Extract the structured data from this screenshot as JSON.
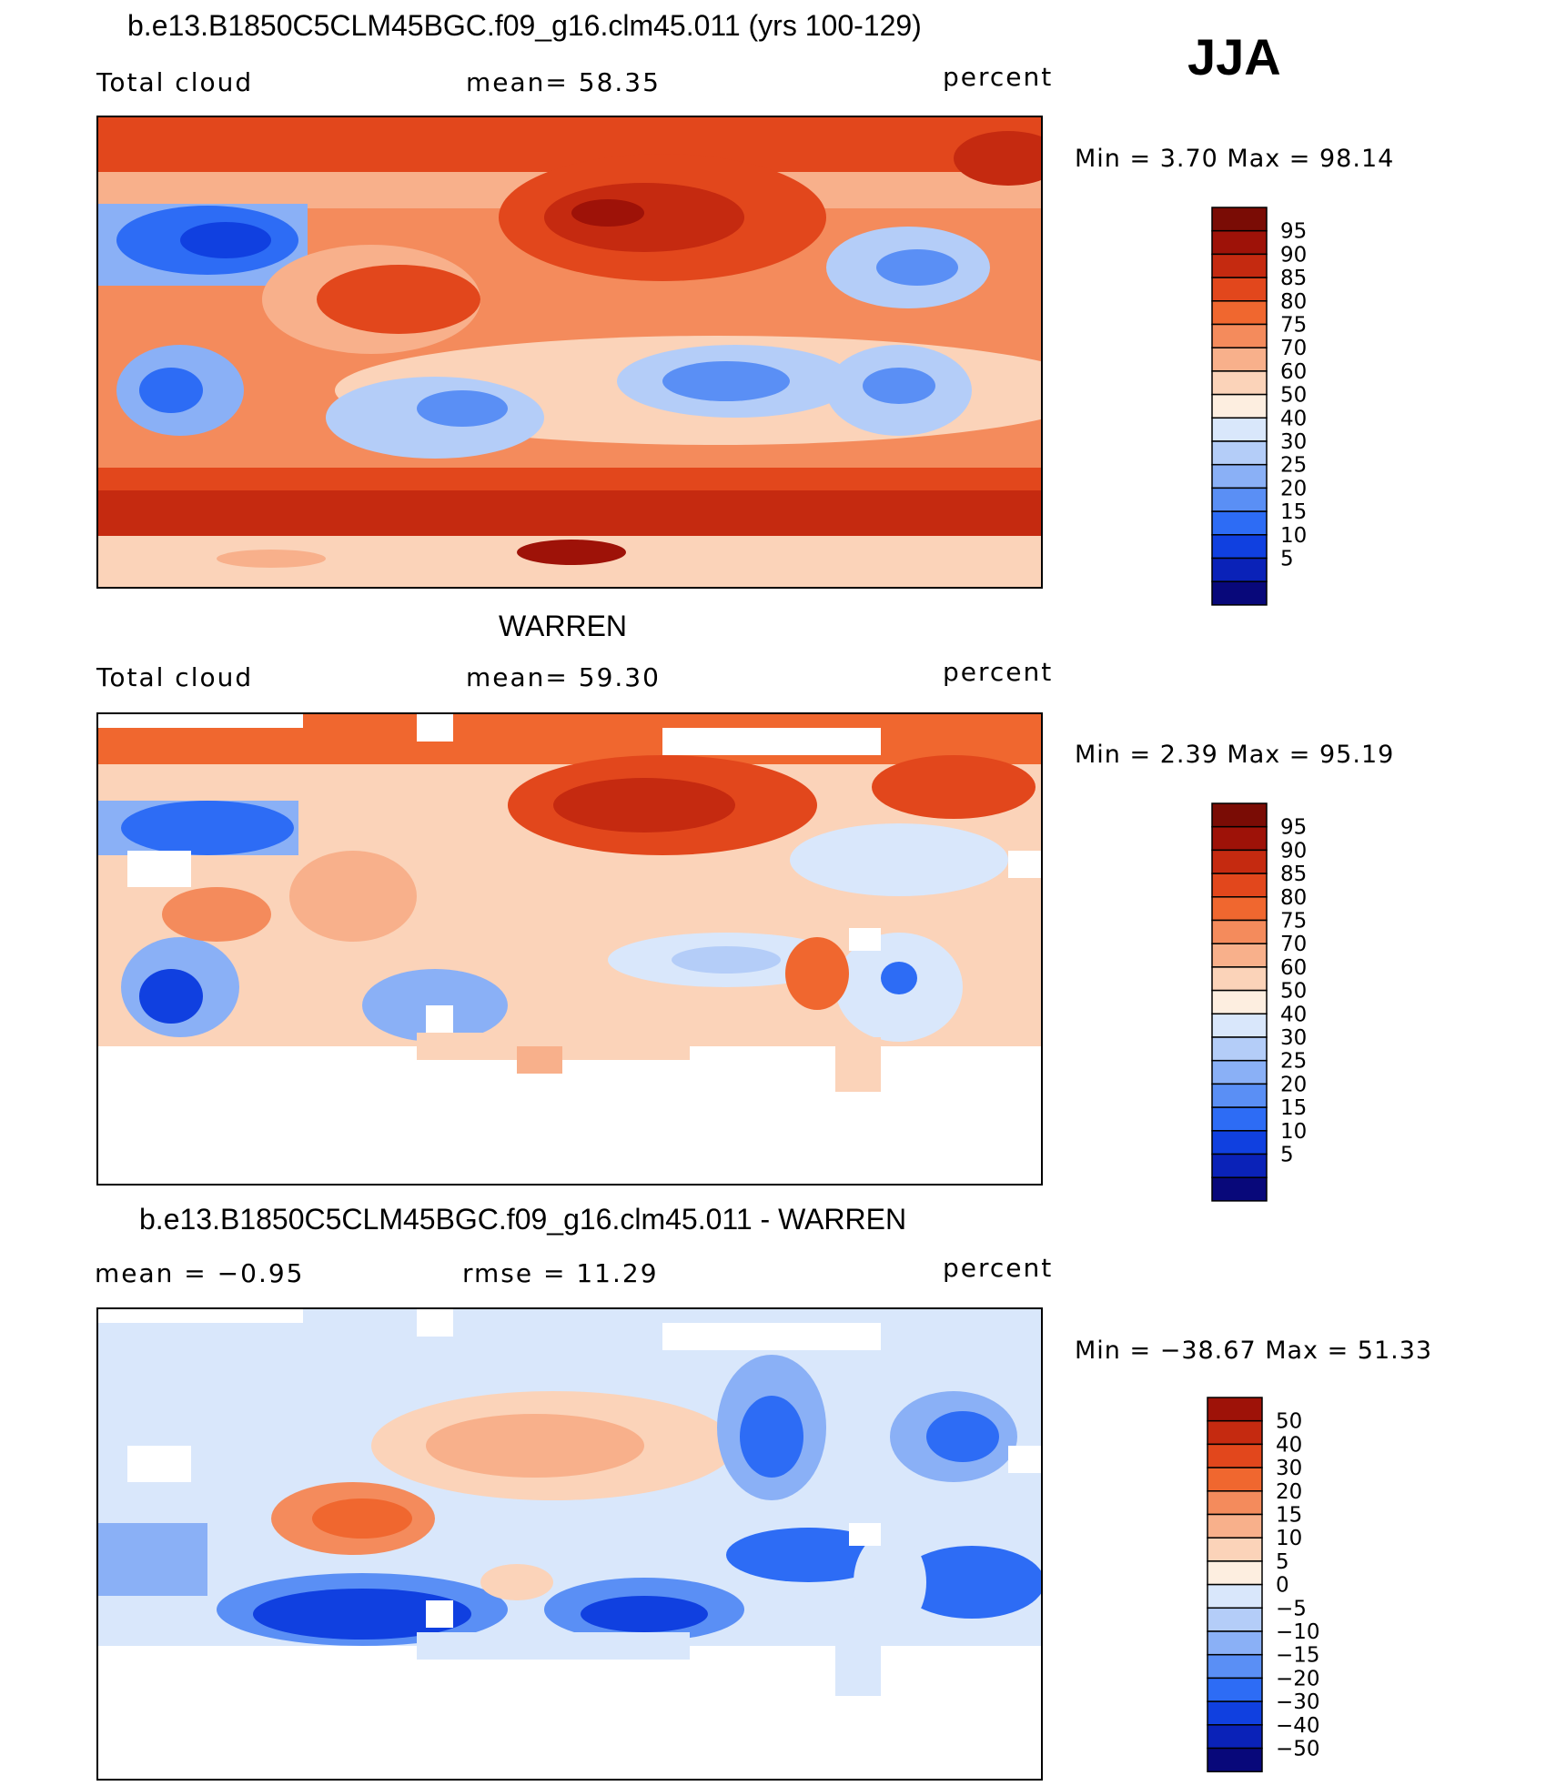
{
  "season": "JJA",
  "palette": {
    "abs": [
      "#08087a",
      "#0a22b8",
      "#1040e0",
      "#2d6cf5",
      "#5a8ff5",
      "#8ab0f6",
      "#b4cdf8",
      "#d9e7fb",
      "#fdeee0",
      "#fbd3b9",
      "#f8b08b",
      "#f48b5c",
      "#f0672f",
      "#e2471c",
      "#c52a10",
      "#9e1208",
      "#7a0c05"
    ],
    "diff": [
      "#08087a",
      "#0a22b8",
      "#1040e0",
      "#2d6cf5",
      "#5a8ff5",
      "#8ab0f6",
      "#b4cdf8",
      "#d9e7fb",
      "#fdeee0",
      "#fbd3b9",
      "#f8b08b",
      "#f48b5c",
      "#f0672f",
      "#e2471c",
      "#c52a10",
      "#9e1208"
    ]
  },
  "panels": [
    {
      "id": "model",
      "title": "b.e13.B1850C5CLM45BGC.f09_g16.clm45.011 (yrs 100-129)",
      "left_label": "Total cloud",
      "center_label": "mean=   58.35",
      "right_label": "percent",
      "minmax": "Min  =      3.70  Max  =     98.14",
      "colorbar_labels": [
        "95",
        "90",
        "85",
        "80",
        "75",
        "70",
        "60",
        "50",
        "40",
        "30",
        "25",
        "20",
        "15",
        "10",
        "5"
      ],
      "palette": "abs"
    },
    {
      "id": "obs",
      "title": "WARREN",
      "left_label": "Total cloud",
      "center_label": "mean=   59.30",
      "right_label": "percent",
      "minmax": "Min  =      2.39  Max  =     95.19",
      "colorbar_labels": [
        "95",
        "90",
        "85",
        "80",
        "75",
        "70",
        "60",
        "50",
        "40",
        "30",
        "25",
        "20",
        "15",
        "10",
        "5"
      ],
      "palette": "abs"
    },
    {
      "id": "diff",
      "title": "b.e13.B1850C5CLM45BGC.f09_g16.clm45.011 - WARREN",
      "left_label": "mean  =    −0.95",
      "center_label": "rmse  =    11.29",
      "right_label": "percent",
      "minmax": "Min  = −38.67  Max  =     51.33",
      "colorbar_labels": [
        "50",
        "40",
        "30",
        "20",
        "15",
        "10",
        "5",
        "0",
        "−5",
        "−10",
        "−15",
        "−20",
        "−30",
        "−40",
        "−50"
      ],
      "palette": "diff"
    }
  ]
}
